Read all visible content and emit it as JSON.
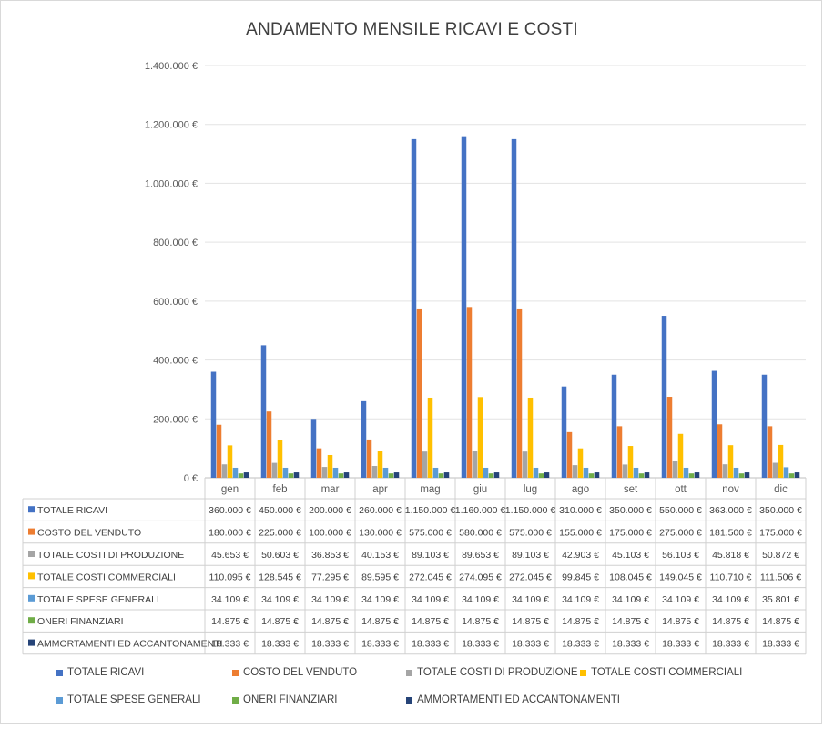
{
  "chart_data": {
    "type": "bar",
    "title": "ANDAMENTO MENSILE RICAVI E COSTI",
    "categories": [
      "gen",
      "feb",
      "mar",
      "apr",
      "mag",
      "giu",
      "lug",
      "ago",
      "set",
      "ott",
      "nov",
      "dic"
    ],
    "ylim": [
      0,
      1400000
    ],
    "yticks": [
      "0 €",
      "200.000 €",
      "400.000 €",
      "600.000 €",
      "800.000 €",
      "1.000.000 €",
      "1.200.000 €",
      "1.400.000 €"
    ],
    "grid": true,
    "legend_position": "bottom",
    "has_data_table": true,
    "series": [
      {
        "name": "TOTALE RICAVI",
        "color": "#4472C4",
        "values": [
          360000,
          450000,
          200000,
          260000,
          1150000,
          1160000,
          1150000,
          310000,
          350000,
          550000,
          363000,
          350000
        ],
        "labels": [
          "360.000 €",
          "450.000 €",
          "200.000 €",
          "260.000 €",
          "1.150.000 €",
          "1.160.000 €",
          "1.150.000 €",
          "310.000 €",
          "350.000 €",
          "550.000 €",
          "363.000 €",
          "350.000 €"
        ]
      },
      {
        "name": "COSTO DEL VENDUTO",
        "color": "#ED7D31",
        "values": [
          180000,
          225000,
          100000,
          130000,
          575000,
          580000,
          575000,
          155000,
          175000,
          275000,
          181500,
          175000
        ],
        "labels": [
          "180.000 €",
          "225.000 €",
          "100.000 €",
          "130.000 €",
          "575.000 €",
          "580.000 €",
          "575.000 €",
          "155.000 €",
          "175.000 €",
          "275.000 €",
          "181.500 €",
          "175.000 €"
        ]
      },
      {
        "name": "TOTALE COSTI DI PRODUZIONE",
        "color": "#A5A5A5",
        "values": [
          45653,
          50603,
          36853,
          40153,
          89103,
          89653,
          89103,
          42903,
          45103,
          56103,
          45818,
          50872
        ],
        "labels": [
          "45.653 €",
          "50.603 €",
          "36.853 €",
          "40.153 €",
          "89.103 €",
          "89.653 €",
          "89.103 €",
          "42.903 €",
          "45.103 €",
          "56.103 €",
          "45.818 €",
          "50.872 €"
        ]
      },
      {
        "name": "TOTALE COSTI COMMERCIALI",
        "color": "#FFC000",
        "values": [
          110095,
          128545,
          77295,
          89595,
          272045,
          274095,
          272045,
          99845,
          108045,
          149045,
          110710,
          111506
        ],
        "labels": [
          "110.095 €",
          "128.545 €",
          "77.295 €",
          "89.595 €",
          "272.045 €",
          "274.095 €",
          "272.045 €",
          "99.845 €",
          "108.045 €",
          "149.045 €",
          "110.710 €",
          "111.506 €"
        ]
      },
      {
        "name": "TOTALE SPESE GENERALI",
        "color": "#5B9BD5",
        "values": [
          34109,
          34109,
          34109,
          34109,
          34109,
          34109,
          34109,
          34109,
          34109,
          34109,
          34109,
          35801
        ],
        "labels": [
          "34.109 €",
          "34.109 €",
          "34.109 €",
          "34.109 €",
          "34.109 €",
          "34.109 €",
          "34.109 €",
          "34.109 €",
          "34.109 €",
          "34.109 €",
          "34.109 €",
          "35.801 €"
        ]
      },
      {
        "name": "ONERI FINANZIARI",
        "color": "#70AD47",
        "values": [
          14875,
          14875,
          14875,
          14875,
          14875,
          14875,
          14875,
          14875,
          14875,
          14875,
          14875,
          14875
        ],
        "labels": [
          "14.875 €",
          "14.875 €",
          "14.875 €",
          "14.875 €",
          "14.875 €",
          "14.875 €",
          "14.875 €",
          "14.875 €",
          "14.875 €",
          "14.875 €",
          "14.875 €",
          "14.875 €"
        ]
      },
      {
        "name": "AMMORTAMENTI ED ACCANTONAMENTI",
        "color": "#264478",
        "values": [
          18333,
          18333,
          18333,
          18333,
          18333,
          18333,
          18333,
          18333,
          18333,
          18333,
          18333,
          18333
        ],
        "labels": [
          "18.333 €",
          "18.333 €",
          "18.333 €",
          "18.333 €",
          "18.333 €",
          "18.333 €",
          "18.333 €",
          "18.333 €",
          "18.333 €",
          "18.333 €",
          "18.333 €",
          "18.333 €"
        ]
      }
    ]
  }
}
